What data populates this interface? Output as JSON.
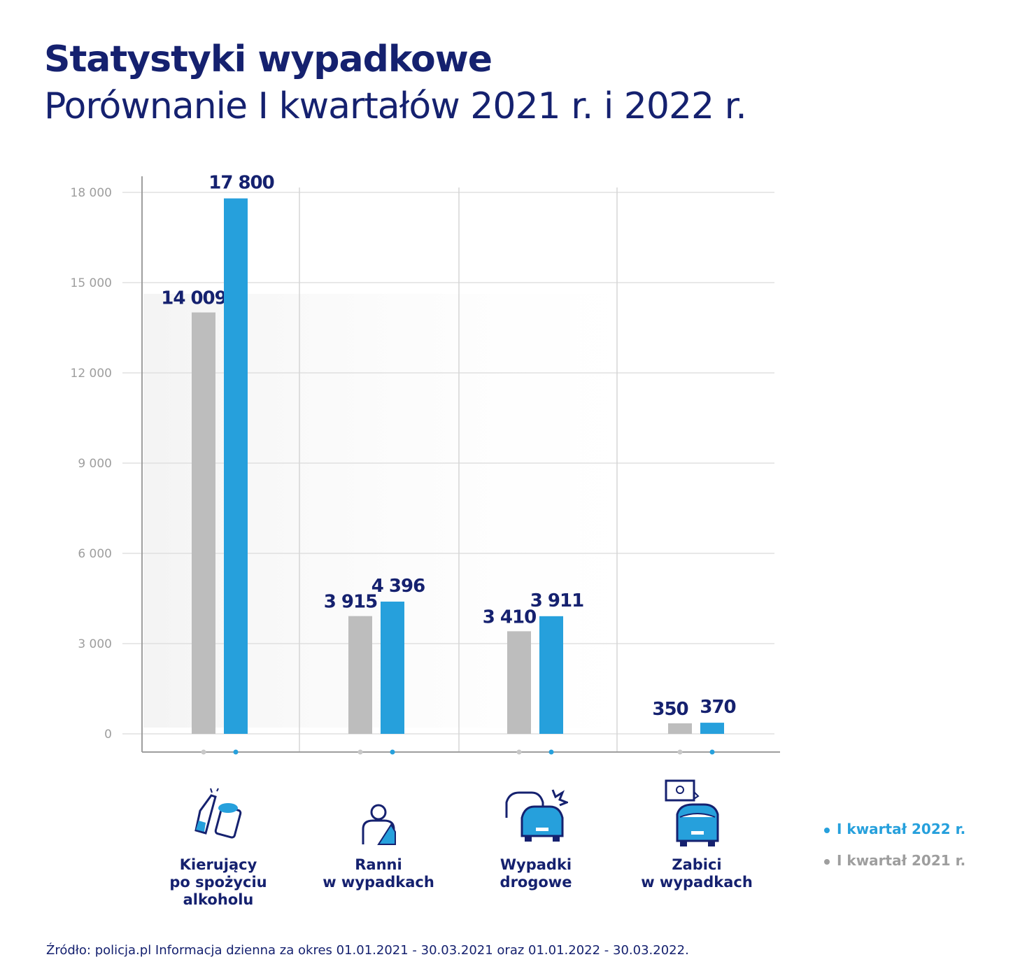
{
  "title": "Statystyki wypadkowe",
  "subtitle": "Porównanie I kwartałów 2021 r. i 2022 r.",
  "colors": {
    "navy": "#15216f",
    "blue": "#26a0dc",
    "gray": "#bdbdbd"
  },
  "chart_data": {
    "type": "bar",
    "categories": [
      "Kierujący po spożyciu alkoholu",
      "Ranni w wypadkach",
      "Wypadki drogowe",
      "Zabici w wypadkach"
    ],
    "category_lines": [
      [
        "Kierujący",
        "po spożyciu",
        "alkoholu"
      ],
      [
        "Ranni",
        "w wypadkach"
      ],
      [
        "Wypadki",
        "drogowe"
      ],
      [
        "Zabici",
        "w wypadkach"
      ]
    ],
    "category_icons": [
      "bottle-and-beer-icon",
      "injured-person-icon",
      "car-crash-icon",
      "death-car-icon"
    ],
    "series": [
      {
        "name": "I kwartał 2021 r.",
        "color": "#bdbdbd",
        "values": [
          14009,
          3915,
          3410,
          350
        ],
        "labels": [
          "14 009",
          "3 915",
          "3 410",
          "350"
        ]
      },
      {
        "name": "I kwartał 2022 r.",
        "color": "#26a0dc",
        "values": [
          17800,
          4396,
          3911,
          370
        ],
        "labels": [
          "17 800",
          "4 396",
          "3 911",
          "370"
        ]
      }
    ],
    "yticks": [
      0,
      3000,
      6000,
      9000,
      12000,
      15000,
      18000
    ],
    "ytick_labels": [
      "0",
      "3 000",
      "6 000",
      "9 000",
      "12 000",
      "15 000",
      "18 000"
    ],
    "ylim": [
      0,
      18000
    ],
    "grid": true,
    "legend_position": "right"
  },
  "legend": [
    {
      "label": "I kwartał 2022 r.",
      "color": "#26a0dc"
    },
    {
      "label": "I kwartał 2021 r.",
      "color": "#9e9e9e"
    }
  ],
  "source": "Źródło: policja.pl Informacja dzienna za okres 01.01.2021 - 30.03.2021 oraz 01.01.2022 - 30.03.2022."
}
